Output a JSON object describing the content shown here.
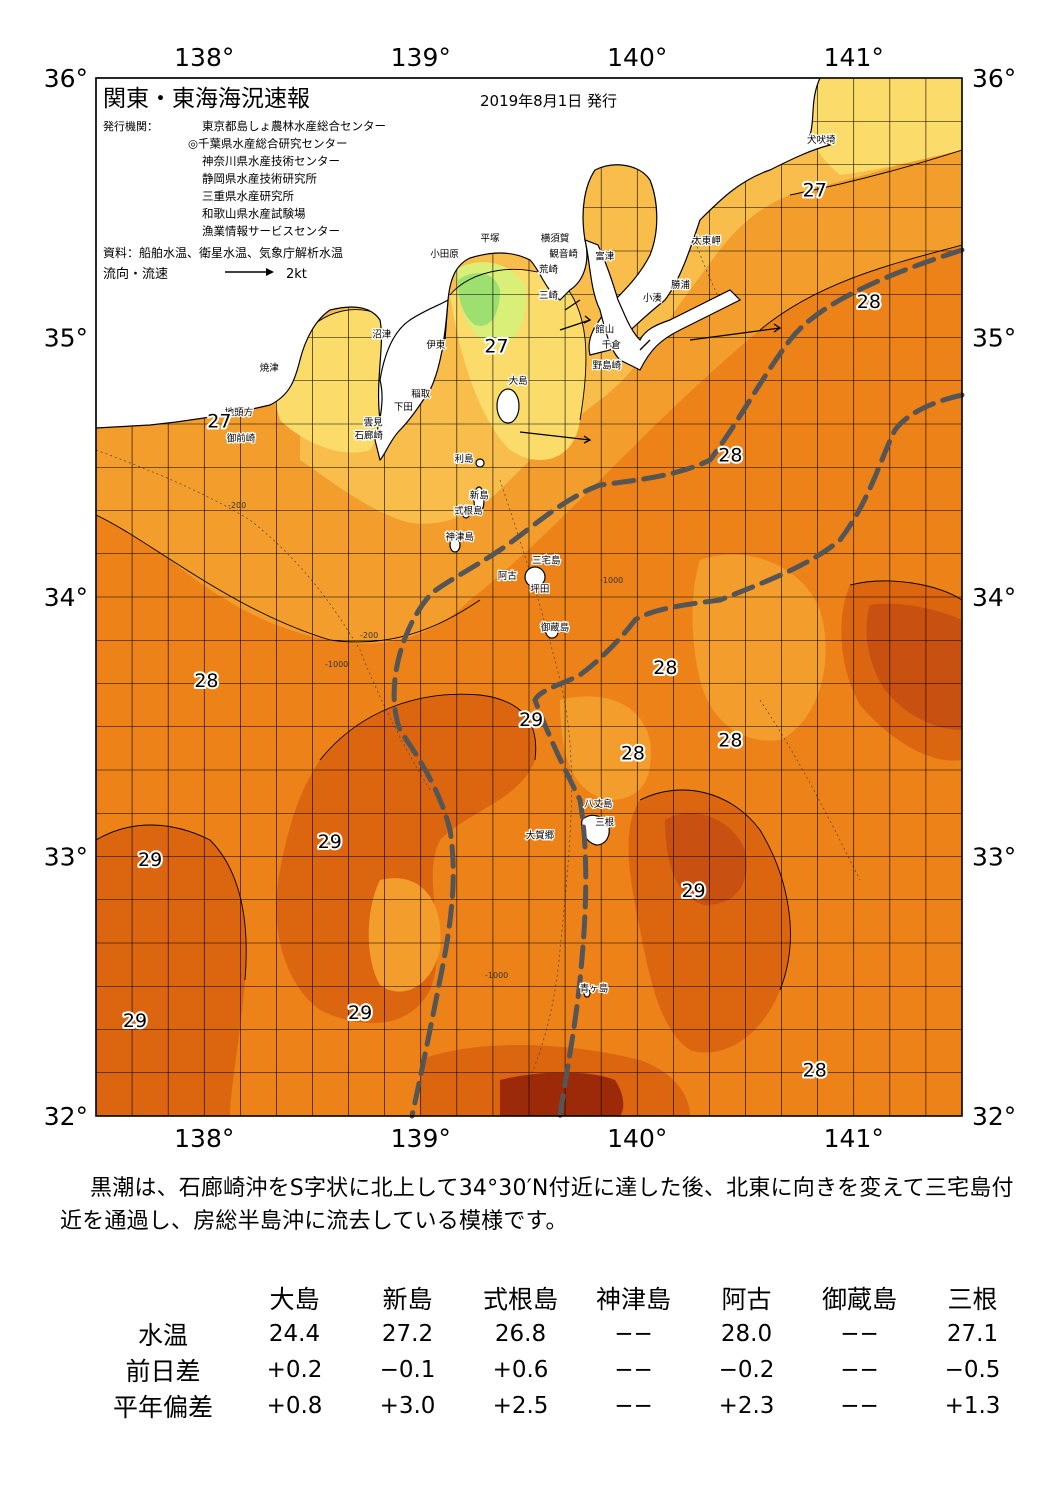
{
  "title": "関東・東海海況速報",
  "issue_date": "2019年8月1日 発行",
  "issuers_label": "発行機関：",
  "issuers": [
    "東京都島しょ農林水産総合センター",
    "◎千葉県水産総合研究センター",
    "神奈川県水産技術センター",
    "静岡県水産技術研究所",
    "三重県水産研究所",
    "和歌山県水産試験場",
    "漁業情報サービスセンター"
  ],
  "sources": "資料：船舶水温、衛星水温、気象庁解析水温",
  "current_legend": {
    "label": "流向・流速",
    "scale": "2kt"
  },
  "axes": {
    "lon_ticks": [
      "138°",
      "139°",
      "140°",
      "141°"
    ],
    "lat_ticks": [
      "36°",
      "35°",
      "34°",
      "33°",
      "32°"
    ],
    "lon_range": [
      137.5,
      141.5
    ],
    "lat_range": [
      32,
      36
    ]
  },
  "isotherm_labels": [
    {
      "text": "27",
      "lon": 140.82,
      "lat": 35.57
    },
    {
      "text": "28",
      "lon": 141.07,
      "lat": 35.14
    },
    {
      "text": "27",
      "lon": 139.35,
      "lat": 34.97
    },
    {
      "text": "27",
      "lon": 138.07,
      "lat": 34.68
    },
    {
      "text": "28",
      "lon": 140.43,
      "lat": 34.55
    },
    {
      "text": "28",
      "lon": 138.01,
      "lat": 33.68
    },
    {
      "text": "28",
      "lon": 140.13,
      "lat": 33.73
    },
    {
      "text": "29",
      "lon": 139.51,
      "lat": 33.53
    },
    {
      "text": "28",
      "lon": 139.98,
      "lat": 33.4
    },
    {
      "text": "28",
      "lon": 140.43,
      "lat": 33.45
    },
    {
      "text": "29",
      "lon": 137.75,
      "lat": 32.99
    },
    {
      "text": "29",
      "lon": 138.58,
      "lat": 33.06
    },
    {
      "text": "29",
      "lon": 140.26,
      "lat": 32.87
    },
    {
      "text": "29",
      "lon": 137.68,
      "lat": 32.37
    },
    {
      "text": "29",
      "lon": 138.72,
      "lat": 32.4
    },
    {
      "text": "28",
      "lon": 140.82,
      "lat": 32.18
    }
  ],
  "place_names": [
    {
      "text": "犬吠埼",
      "lon": 140.85,
      "lat": 35.75
    },
    {
      "text": "太東岬",
      "lon": 140.32,
      "lat": 35.36
    },
    {
      "text": "勝浦",
      "lon": 140.2,
      "lat": 35.19
    },
    {
      "text": "小湊",
      "lon": 140.07,
      "lat": 35.14
    },
    {
      "text": "富津",
      "lon": 139.85,
      "lat": 35.3
    },
    {
      "text": "横須賀",
      "lon": 139.62,
      "lat": 35.37
    },
    {
      "text": "観音崎",
      "lon": 139.66,
      "lat": 35.31
    },
    {
      "text": "平塚",
      "lon": 139.32,
      "lat": 35.37
    },
    {
      "text": "小田原",
      "lon": 139.11,
      "lat": 35.31
    },
    {
      "text": "荒崎",
      "lon": 139.59,
      "lat": 35.25
    },
    {
      "text": "三崎",
      "lon": 139.59,
      "lat": 35.15
    },
    {
      "text": "館山",
      "lon": 139.85,
      "lat": 35.02
    },
    {
      "text": "千倉",
      "lon": 139.88,
      "lat": 34.96
    },
    {
      "text": "野島崎",
      "lon": 139.86,
      "lat": 34.88
    },
    {
      "text": "沼津",
      "lon": 138.82,
      "lat": 35.0
    },
    {
      "text": "焼津",
      "lon": 138.3,
      "lat": 34.87
    },
    {
      "text": "伊東",
      "lon": 139.07,
      "lat": 34.96
    },
    {
      "text": "稲取",
      "lon": 139.0,
      "lat": 34.77
    },
    {
      "text": "下田",
      "lon": 138.92,
      "lat": 34.72
    },
    {
      "text": "雲見",
      "lon": 138.78,
      "lat": 34.66
    },
    {
      "text": "石廊崎",
      "lon": 138.76,
      "lat": 34.61
    },
    {
      "text": "地頭方",
      "lon": 138.16,
      "lat": 34.7
    },
    {
      "text": "御前崎",
      "lon": 138.17,
      "lat": 34.6
    },
    {
      "text": "大島",
      "lon": 139.45,
      "lat": 34.82
    },
    {
      "text": "利島",
      "lon": 139.2,
      "lat": 34.52
    },
    {
      "text": "新島",
      "lon": 139.27,
      "lat": 34.38
    },
    {
      "text": "式根島",
      "lon": 139.22,
      "lat": 34.32
    },
    {
      "text": "神津島",
      "lon": 139.18,
      "lat": 34.22
    },
    {
      "text": "三宅島",
      "lon": 139.58,
      "lat": 34.13
    },
    {
      "text": "阿古",
      "lon": 139.4,
      "lat": 34.07
    },
    {
      "text": "坪田",
      "lon": 139.55,
      "lat": 34.02
    },
    {
      "text": "御蔵島",
      "lon": 139.62,
      "lat": 33.87
    },
    {
      "text": "八丈島",
      "lon": 139.82,
      "lat": 33.19
    },
    {
      "text": "三根",
      "lon": 139.85,
      "lat": 33.12
    },
    {
      "text": "大賀郷",
      "lon": 139.55,
      "lat": 33.07
    },
    {
      "text": "青ヶ島",
      "lon": 139.8,
      "lat": 32.48
    }
  ],
  "depth_labels": [
    "-200",
    "-1000"
  ],
  "summary": "黒潮は、石廊崎沖をS字状に北上して34°30′N付近に達した後、北東に向きを変えて三宅島付近を通過し、房総半島沖に流去している模様です。",
  "table": {
    "stations": [
      "大島",
      "新島",
      "式根島",
      "神津島",
      "阿古",
      "御蔵島",
      "三根"
    ],
    "rows": [
      {
        "label": "水温",
        "values": [
          "24.4",
          "27.2",
          "26.8",
          "−−",
          "28.0",
          "−−",
          "27.1"
        ]
      },
      {
        "label": "前日差",
        "values": [
          "+0.2",
          "−0.1",
          "+0.6",
          "−−",
          "−0.2",
          "−−",
          "−0.5"
        ]
      },
      {
        "label": "平年偏差",
        "values": [
          "+0.8",
          "+3.0",
          "+2.5",
          "−−",
          "+2.3",
          "−−",
          "+1.3"
        ]
      }
    ]
  },
  "colors": {
    "temp_29_dark": "#c85010",
    "temp_29": "#dc6610",
    "temp_28_5": "#ec8218",
    "temp_28": "#f39d2c",
    "temp_27": "#f8bd4a",
    "temp_26": "#fbdc6a",
    "temp_25": "#d9ef78",
    "temp_24": "#9ee070",
    "temp_30": "#9c2a08",
    "land": "#ffffff",
    "kuroshio_axis": "#555555",
    "grid": "#000000"
  }
}
